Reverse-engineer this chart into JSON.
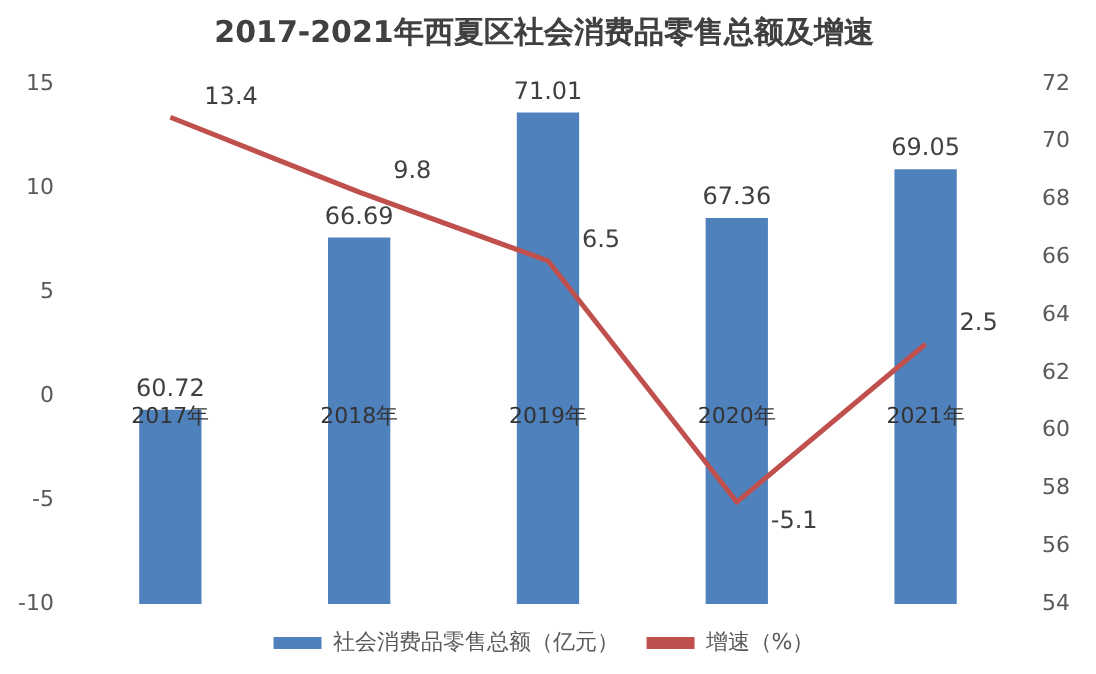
{
  "chart_data": {
    "type": "bar",
    "title": "2017-2021年西夏区社会消费品零售总额及增速",
    "categories": [
      "2017年",
      "2018年",
      "2019年",
      "2020年",
      "2021年"
    ],
    "series": [
      {
        "name": "社会消费品零售总额（亿元）",
        "axis": "y2",
        "color": "#4f81bd",
        "values": [
          60.72,
          66.69,
          71.01,
          67.36,
          69.05
        ]
      },
      {
        "name": "增速（%）",
        "type": "line",
        "axis": "y",
        "color": "#c0504d",
        "values": [
          13.4,
          9.8,
          6.5,
          -5.1,
          2.5
        ]
      }
    ],
    "ylim": [
      -10,
      15
    ],
    "yticks": [
      -10,
      -5,
      0,
      5,
      10,
      15
    ],
    "y2lim": [
      54,
      72
    ],
    "y2ticks": [
      54,
      56,
      58,
      60,
      62,
      64,
      66,
      68,
      70,
      72
    ],
    "grid": false,
    "legend": "bottom",
    "marker": "none",
    "line_style": "solid",
    "data_labels": true
  }
}
